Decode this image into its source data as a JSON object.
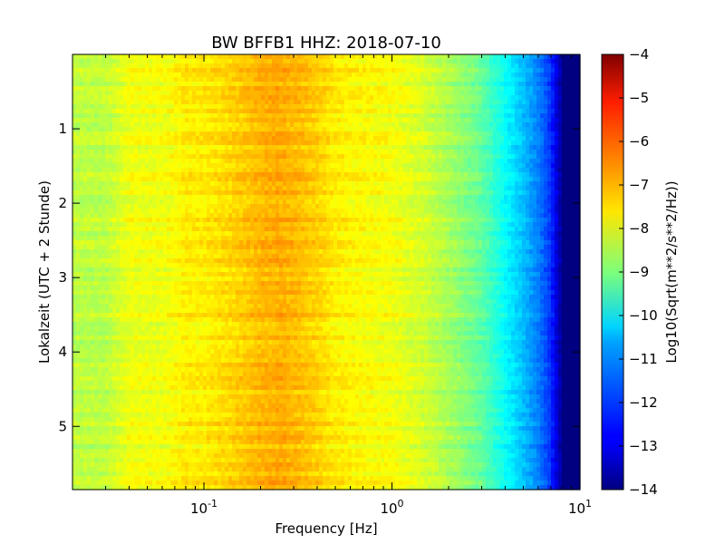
{
  "chart_data": {
    "type": "heatmap",
    "title": "BW BFFB1 HHZ: 2018-07-10",
    "xlabel": "Frequency [Hz]",
    "ylabel": "Lokalzeit (UTC + 2 Stunde)",
    "x_scale": "log",
    "xlim": [
      0.02,
      10
    ],
    "x_ticks": [
      0.1,
      1,
      10
    ],
    "x_tick_labels": [
      {
        "base": "10",
        "exp": "-1"
      },
      {
        "base": "10",
        "exp": "0"
      },
      {
        "base": "10",
        "exp": "1"
      }
    ],
    "ylim": [
      0,
      5.85
    ],
    "y_inverted": true,
    "y_ticks": [
      1,
      2,
      3,
      4,
      5
    ],
    "y_tick_labels": [
      "1",
      "2",
      "3",
      "4",
      "5"
    ],
    "colorbar": {
      "label": "Log10(Sqrt(m**2/s**2/Hz))",
      "range": [
        -14,
        -4
      ],
      "ticks": [
        -4,
        -5,
        -6,
        -7,
        -8,
        -9,
        -10,
        -11,
        -12,
        -13,
        -14
      ],
      "tick_labels": [
        "−4",
        "−5",
        "−6",
        "−7",
        "−8",
        "−9",
        "−10",
        "−11",
        "−12",
        "−13",
        "−14"
      ],
      "colormap": "jet"
    },
    "spectrum_profile": {
      "frequency_hz": [
        0.02,
        0.03,
        0.04,
        0.06,
        0.08,
        0.1,
        0.15,
        0.2,
        0.25,
        0.3,
        0.4,
        0.5,
        0.7,
        1.0,
        1.5,
        2.0,
        3.0,
        4.0,
        5.0,
        6.0,
        7.0,
        8.0,
        10.0
      ],
      "log10_amplitude": [
        -8.4,
        -8.4,
        -7.9,
        -7.9,
        -7.6,
        -7.6,
        -7.3,
        -7.05,
        -6.95,
        -7.05,
        -7.3,
        -7.6,
        -7.75,
        -7.85,
        -8.2,
        -8.6,
        -9.3,
        -10.2,
        -10.9,
        -11.5,
        -12.3,
        -13.8,
        -14.0
      ]
    }
  }
}
